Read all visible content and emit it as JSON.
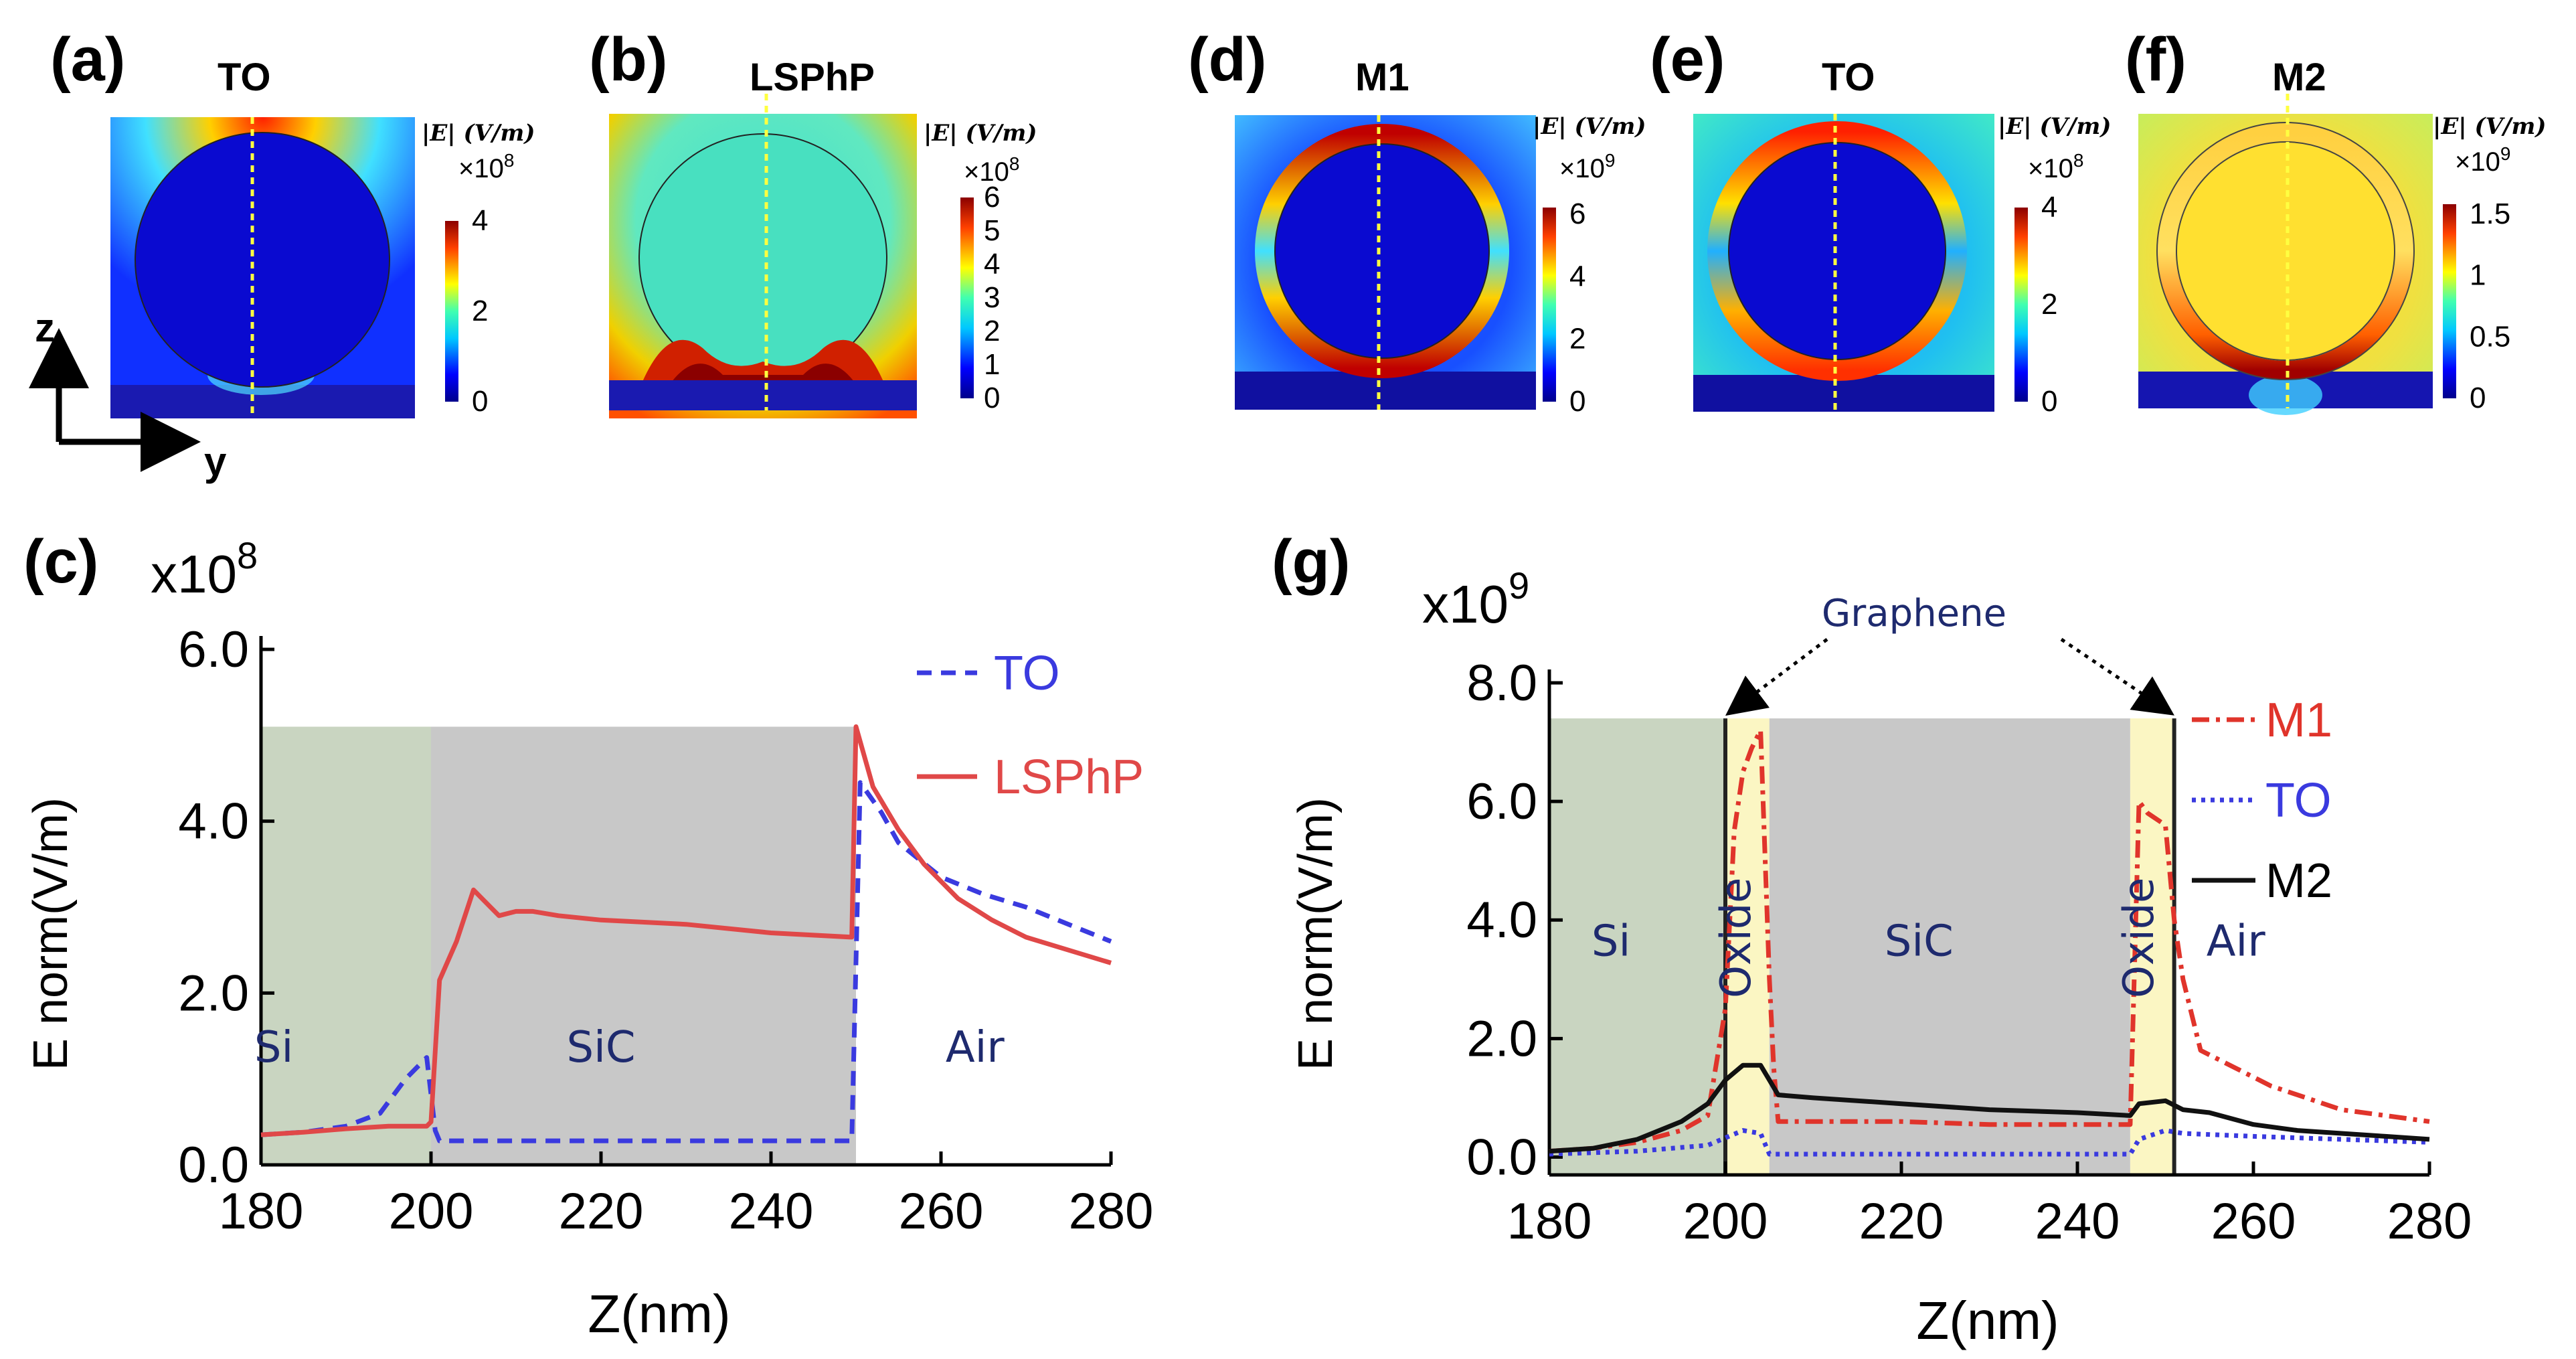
{
  "panels": [
    {
      "id": "a",
      "label": "(a)",
      "title": "TO",
      "colorbar": {
        "label": "|E| (V/m)",
        "exponent": "×10",
        "exponent_power": "8",
        "ticks": [
          "4",
          "2",
          "0"
        ]
      },
      "field": "gap"
    },
    {
      "id": "b",
      "label": "(b)",
      "title": "LSPhP",
      "colorbar": {
        "label": "|E| (V/m)",
        "exponent": "×10",
        "exponent_power": "8",
        "ticks": [
          "6",
          "5",
          "4",
          "3",
          "2",
          "1",
          "0"
        ]
      },
      "field": "lsphp"
    },
    {
      "id": "d",
      "label": "(d)",
      "title": "M1",
      "colorbar": {
        "label": "|E| (V/m)",
        "exponent": "×10",
        "exponent_power": "9",
        "ticks": [
          "6",
          "4",
          "2",
          "0"
        ]
      },
      "field": "ring"
    },
    {
      "id": "e",
      "label": "(e)",
      "title": "TO",
      "colorbar": {
        "label": "|E| (V/m)",
        "exponent": "×10",
        "exponent_power": "8",
        "ticks": [
          "4",
          "2",
          "0"
        ]
      },
      "field": "ring-top"
    },
    {
      "id": "f",
      "label": "(f)",
      "title": "M2",
      "colorbar": {
        "label": "|E| (V/m)",
        "exponent": "×10",
        "exponent_power": "9",
        "ticks": [
          "1.5",
          "1",
          "0.5",
          "0"
        ]
      },
      "field": "m2"
    }
  ],
  "axes_indicator": {
    "vertical": "z",
    "horizontal": "y"
  },
  "chart_data": [
    {
      "id": "c",
      "type": "line",
      "label": "(c)",
      "multiplier": "x10",
      "multiplier_power": "8",
      "xlabel": "Z(nm)",
      "ylabel": "E norm(V/m)",
      "xlim": [
        180,
        280
      ],
      "ylim": [
        0,
        6
      ],
      "xticks": [
        180,
        200,
        220,
        240,
        260,
        280
      ],
      "xtick_labels": [
        "180",
        "200",
        "220",
        "240",
        "260",
        "280"
      ],
      "yticks": [
        0,
        2,
        4,
        6
      ],
      "ytick_labels": [
        "0.0",
        "2.0",
        "4.0",
        "6.0"
      ],
      "regions": [
        {
          "name": "Si",
          "from": 180,
          "to": 200,
          "color": "#c9d5c1"
        },
        {
          "name": "SiC",
          "from": 200,
          "to": 250,
          "color": "#c8c8c8"
        },
        {
          "name": "Air",
          "from": 250,
          "to": 280,
          "color": "none"
        }
      ],
      "region_top": 5.1,
      "series": [
        {
          "name": "TO",
          "color": "#3a3adf",
          "dash": "dashed",
          "x": [
            180,
            185,
            190,
            194,
            197,
            199.5,
            200.5,
            201,
            210,
            220,
            230,
            240,
            249.5,
            250.5,
            253,
            255,
            260,
            265,
            270,
            275,
            280
          ],
          "y": [
            0.35,
            0.38,
            0.45,
            0.6,
            1.0,
            1.25,
            0.4,
            0.28,
            0.28,
            0.28,
            0.28,
            0.28,
            0.28,
            4.45,
            4.1,
            3.75,
            3.35,
            3.15,
            3.0,
            2.8,
            2.6
          ]
        },
        {
          "name": "LSPhP",
          "color": "#e04848",
          "dash": "solid",
          "x": [
            180,
            185,
            190,
            195,
            199.5,
            200,
            201,
            203,
            205,
            206,
            208,
            210,
            212,
            215,
            220,
            230,
            240,
            249.5,
            250,
            252,
            255,
            258,
            262,
            266,
            270,
            275,
            280
          ],
          "y": [
            0.35,
            0.38,
            0.42,
            0.45,
            0.45,
            0.5,
            2.15,
            2.6,
            3.2,
            3.1,
            2.9,
            2.95,
            2.95,
            2.9,
            2.85,
            2.8,
            2.7,
            2.65,
            5.1,
            4.4,
            3.9,
            3.5,
            3.1,
            2.85,
            2.65,
            2.5,
            2.35
          ]
        }
      ]
    },
    {
      "id": "g",
      "type": "line",
      "label": "(g)",
      "multiplier": "x10",
      "multiplier_power": "9",
      "xlabel": "Z(nm)",
      "ylabel": "E norm(V/m)",
      "xlim": [
        180,
        280
      ],
      "ylim": [
        -0.3,
        8
      ],
      "xticks": [
        180,
        200,
        220,
        240,
        260,
        280
      ],
      "xtick_labels": [
        "180",
        "200",
        "220",
        "240",
        "260",
        "280"
      ],
      "yticks": [
        0,
        2,
        4,
        6,
        8
      ],
      "ytick_labels": [
        "0.0",
        "2.0",
        "4.0",
        "6.0",
        "8.0"
      ],
      "regions": [
        {
          "name": "Si",
          "from": 180,
          "to": 200,
          "color": "#c9d5c1"
        },
        {
          "name": "Oxide",
          "from": 200,
          "to": 205,
          "color": "#fbf6c3"
        },
        {
          "name": "SiC",
          "from": 205,
          "to": 246,
          "color": "#c8c8c8"
        },
        {
          "name": "Oxide",
          "from": 246,
          "to": 251,
          "color": "#fbf6c3"
        },
        {
          "name": "Air",
          "from": 251,
          "to": 280,
          "color": "none"
        }
      ],
      "region_top": 7.4,
      "graphene_z": [
        200,
        251
      ],
      "annotation": "Graphene",
      "series": [
        {
          "name": "M1",
          "color": "#e0342b",
          "dash": "dashdot",
          "x": [
            180,
            185,
            190,
            195,
            198,
            200,
            201,
            202,
            203,
            204,
            205,
            205.5,
            206,
            210,
            220,
            230,
            240,
            246,
            247,
            248,
            250,
            251,
            252,
            254,
            258,
            262,
            266,
            270,
            275,
            280
          ],
          "y": [
            0.1,
            0.15,
            0.25,
            0.45,
            0.7,
            2.5,
            5.5,
            6.5,
            6.9,
            7.2,
            3.0,
            1.5,
            0.6,
            0.6,
            0.6,
            0.55,
            0.55,
            0.55,
            6.0,
            5.8,
            5.6,
            4.0,
            3.0,
            1.8,
            1.5,
            1.2,
            1.0,
            0.8,
            0.7,
            0.6
          ]
        },
        {
          "name": "TO",
          "color": "#3a3adf",
          "dash": "dotted",
          "x": [
            180,
            190,
            198,
            202,
            204,
            205,
            206,
            220,
            246,
            247,
            250,
            252,
            260,
            270,
            280
          ],
          "y": [
            0.05,
            0.1,
            0.2,
            0.45,
            0.4,
            0.05,
            0.05,
            0.05,
            0.05,
            0.3,
            0.45,
            0.4,
            0.35,
            0.3,
            0.25
          ]
        },
        {
          "name": "M2",
          "color": "#111111",
          "dash": "solid",
          "x": [
            180,
            185,
            190,
            195,
            198,
            200,
            202,
            204,
            205,
            206,
            210,
            220,
            230,
            240,
            246,
            247,
            250,
            252,
            255,
            260,
            265,
            270,
            275,
            280
          ],
          "y": [
            0.1,
            0.15,
            0.3,
            0.6,
            0.9,
            1.3,
            1.55,
            1.55,
            1.3,
            1.05,
            1.0,
            0.9,
            0.8,
            0.75,
            0.7,
            0.9,
            0.95,
            0.8,
            0.75,
            0.55,
            0.45,
            0.4,
            0.35,
            0.3
          ]
        }
      ]
    }
  ]
}
